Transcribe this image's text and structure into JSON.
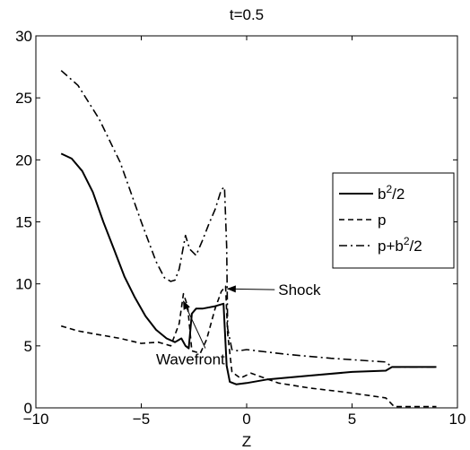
{
  "chart_data": {
    "type": "line",
    "title": "t=0.5",
    "xlabel": "Z",
    "ylabel": "",
    "xlim": [
      -10,
      10
    ],
    "ylim": [
      0,
      30
    ],
    "x_ticks": [
      -10,
      -5,
      0,
      5,
      10
    ],
    "y_ticks": [
      0,
      5,
      10,
      15,
      20,
      25,
      30
    ],
    "x_tick_labels": [
      "−10",
      "−5",
      "0",
      "5",
      "10"
    ],
    "y_tick_labels": [
      "0",
      "5",
      "10",
      "15",
      "20",
      "25",
      "30"
    ],
    "grid": false,
    "legend_position": "right",
    "series": [
      {
        "name": "b²/2",
        "legend_base": "b",
        "legend_sup": "2",
        "legend_tail": "/2",
        "style": "solid",
        "color": "#000000",
        "x": [
          -8.8,
          -8.3,
          -7.8,
          -7.3,
          -6.8,
          -6.3,
          -5.8,
          -5.3,
          -4.8,
          -4.3,
          -3.8,
          -3.4,
          -3.1,
          -2.9,
          -2.75,
          -2.6,
          -2.4,
          -2.1,
          -1.5,
          -1.1,
          -0.95,
          -0.8,
          -0.5,
          0,
          1,
          3,
          5,
          6.6,
          6.9,
          8,
          9
        ],
        "y": [
          20.5,
          20.1,
          19.1,
          17.4,
          15.0,
          12.8,
          10.6,
          8.9,
          7.4,
          6.3,
          5.6,
          5.3,
          5.6,
          5.0,
          4.8,
          7.6,
          8.0,
          8.0,
          8.2,
          8.4,
          3.4,
          2.1,
          1.9,
          2.0,
          2.3,
          2.6,
          2.9,
          3.0,
          3.3,
          3.3,
          3.3
        ]
      },
      {
        "name": "p",
        "legend_base": "p",
        "legend_sup": "",
        "legend_tail": "",
        "style": "dashed",
        "color": "#000000",
        "x": [
          -8.8,
          -8.0,
          -7.0,
          -6.0,
          -5.0,
          -4.2,
          -3.6,
          -3.2,
          -3.0,
          -2.8,
          -2.6,
          -2.2,
          -1.9,
          -1.5,
          -1.2,
          -1.0,
          -0.9,
          -0.7,
          -0.3,
          0.2,
          1.5,
          3.0,
          4.5,
          5.8,
          6.6,
          7.0,
          9.0
        ],
        "y": [
          6.6,
          6.2,
          5.9,
          5.6,
          5.2,
          5.3,
          5.0,
          6.8,
          9.2,
          8.2,
          4.6,
          4.4,
          5.5,
          8.0,
          9.4,
          9.8,
          6.0,
          2.9,
          2.4,
          2.8,
          2.0,
          1.6,
          1.3,
          1.0,
          0.8,
          0.1,
          0.1
        ]
      },
      {
        "name": "p+b²/2",
        "legend_base": "p+b",
        "legend_sup": "2",
        "legend_tail": "/2",
        "style": "dashdot",
        "color": "#000000",
        "x": [
          -8.8,
          -8.0,
          -7.0,
          -6.0,
          -5.0,
          -4.3,
          -3.9,
          -3.6,
          -3.4,
          -3.2,
          -2.9,
          -2.7,
          -2.4,
          -2.1,
          -1.8,
          -1.5,
          -1.2,
          -1.05,
          -0.95,
          -0.9,
          -0.7,
          -0.4,
          0,
          1,
          2,
          4,
          6.6,
          6.9,
          9
        ],
        "y": [
          27.2,
          26.0,
          23.3,
          19.8,
          15.0,
          11.8,
          10.5,
          10.2,
          10.3,
          11.2,
          13.9,
          12.8,
          12.3,
          13.5,
          14.8,
          16.0,
          17.6,
          17.8,
          13.0,
          6.4,
          4.7,
          4.6,
          4.7,
          4.5,
          4.3,
          4.0,
          3.7,
          3.3,
          3.3
        ]
      }
    ],
    "annotations": [
      {
        "text": "Shock",
        "xy": [
          -0.9,
          9.6
        ],
        "xytext": [
          1.5,
          9.1
        ]
      },
      {
        "text": "Wavefront",
        "xy": [
          -3.0,
          8.6
        ],
        "xytext": [
          -4.3,
          3.5
        ]
      }
    ]
  }
}
